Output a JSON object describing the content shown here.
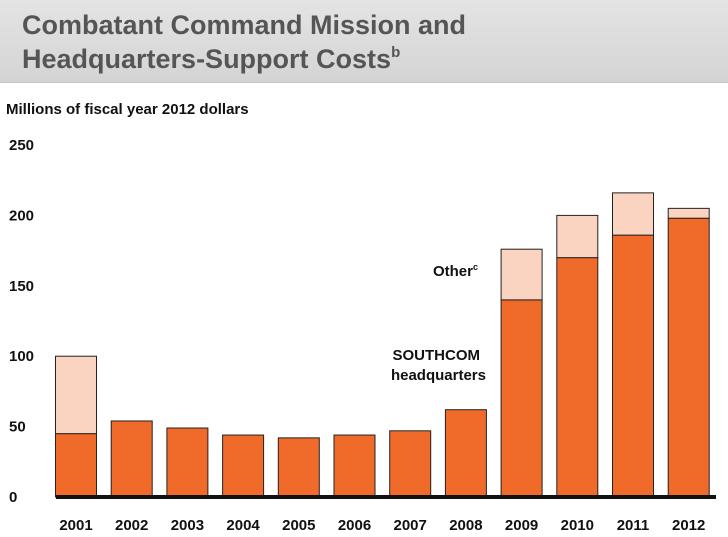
{
  "header": {
    "title_line1": "Combatant Command Mission and",
    "title_line2": "Headquarters-Support Costs",
    "title_footnote": "b"
  },
  "chart_data": {
    "type": "bar",
    "stacked": true,
    "ylabel": "Millions of fiscal year 2012 dollars",
    "ylim": [
      0,
      250
    ],
    "yticks": [
      0,
      50,
      100,
      150,
      200,
      250
    ],
    "grid": false,
    "categories": [
      "2001",
      "2002",
      "2003",
      "2004",
      "2005",
      "2006",
      "2007",
      "2008",
      "2009",
      "2010",
      "2011",
      "2012"
    ],
    "series": [
      {
        "name": "SOUTHCOM headquarters",
        "color": "#f06a2a",
        "values": [
          45,
          54,
          49,
          44,
          42,
          44,
          47,
          62,
          140,
          170,
          186,
          198
        ]
      },
      {
        "name": "Other",
        "name_footnote": "c",
        "color": "#fbd4c1",
        "values": [
          55,
          0,
          0,
          0,
          0,
          0,
          0,
          0,
          36,
          30,
          30,
          7
        ]
      }
    ]
  }
}
